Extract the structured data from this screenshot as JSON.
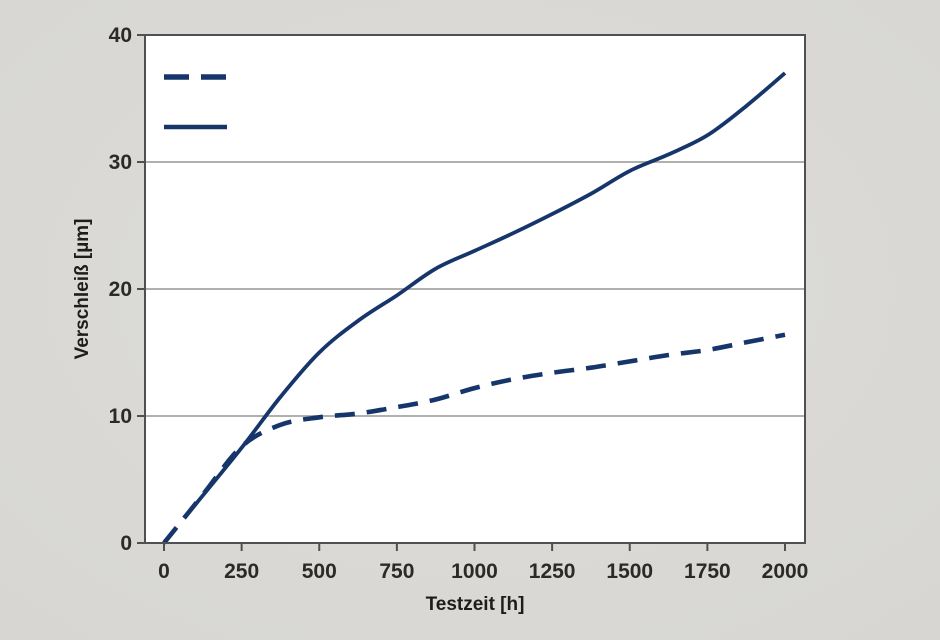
{
  "window": {
    "kind": "static-chart-figure"
  },
  "colors": {
    "background": "#d9d8d4",
    "plot_background": "#ffffff",
    "plot_border": "#4f5052",
    "gridline": "#b0b0ae",
    "line": "#16366b",
    "tick_text": "#2a2a28"
  },
  "chart_data": {
    "type": "line",
    "title": "",
    "xlabel": "Testzeit [h]",
    "ylabel": "Verschleiß [µm]",
    "xlim": [
      0,
      2000
    ],
    "ylim": [
      0,
      40
    ],
    "xticks": [
      0,
      250,
      500,
      750,
      1000,
      1250,
      1500,
      1750,
      2000
    ],
    "yticks": [
      0,
      10,
      20,
      30,
      40
    ],
    "grid": "horizontal-only",
    "legend_position": "top-left",
    "legend_items": [
      {
        "label": "",
        "style": "dashed"
      },
      {
        "label": "",
        "style": "solid"
      }
    ],
    "series": [
      {
        "name": "dashed-series",
        "style": "dashed",
        "x": [
          0,
          125,
          250,
          375,
          500,
          625,
          750,
          875,
          1000,
          1125,
          1250,
          1375,
          1500,
          1625,
          1750,
          1875,
          2000
        ],
        "y": [
          0,
          3.8,
          7.6,
          9.3,
          9.9,
          10.2,
          10.7,
          11.3,
          12.2,
          12.9,
          13.4,
          13.8,
          14.3,
          14.8,
          15.2,
          15.8,
          16.4
        ]
      },
      {
        "name": "solid-series",
        "style": "solid",
        "x": [
          100,
          250,
          375,
          500,
          625,
          750,
          875,
          1000,
          1125,
          1250,
          1375,
          1500,
          1625,
          1750,
          1875,
          2000
        ],
        "y": [
          3.0,
          7.5,
          11.5,
          15.0,
          17.5,
          19.5,
          21.6,
          23.0,
          24.4,
          25.9,
          27.5,
          29.3,
          30.6,
          32.1,
          34.4,
          37.0
        ]
      }
    ]
  }
}
